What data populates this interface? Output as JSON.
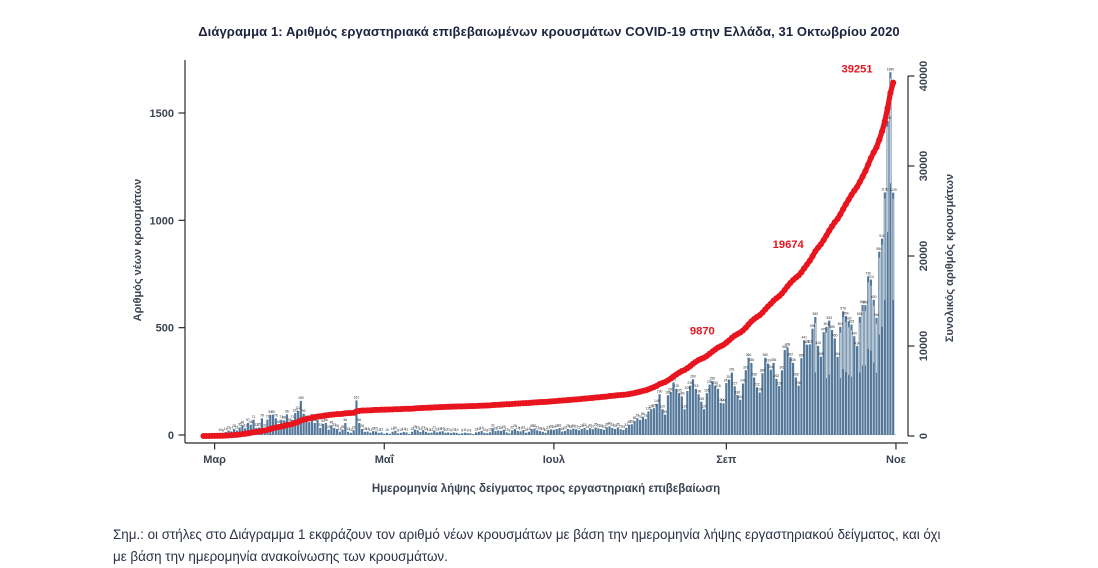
{
  "header": {
    "title": "Διάγραμμα 1: Αριθμός εργαστηριακά επιβεβαιωμένων κρουσμάτων COVID-19 στην Ελλάδα, 31 Οκτωβρίου 2020"
  },
  "footer": {
    "note_lines": [
      "Σημ.: οι στήλες στο Διάγραμμα 1 εκφράζουν τον αριθμό νέων κρουσμάτων με βάση την ημερομηνία λήψης εργαστηριακού δείγματος, και όχι",
      "με βάση την ημερομηνία ανακοίνωσης των κρουσμάτων."
    ]
  },
  "chart_data": {
    "type": "bar",
    "overlay": "line",
    "title": "Διάγραμμα 1: Αριθμός εργαστηριακά επιβεβαιωμένων κρουσμάτων COVID-19 στην Ελλάδα, 31 Οκτωβρίου 2020",
    "xlabel": "Ημερομηνία λήψης δείγματος προς εργαστηριακή επιβεβαίωση",
    "ylabel_left": "Αριθμός νέων κρουσμάτων",
    "ylabel_right": "Συνολικός αριθμός κρουσμάτων",
    "x_start_date": "2020-02-26",
    "x_end_date": "2020-10-31",
    "x_ticks": {
      "labels": [
        "Μαρ",
        "Μαΐ",
        "Ιουλ",
        "Σεπ",
        "Νοε"
      ],
      "day_index": [
        4,
        65,
        126,
        188,
        249
      ]
    },
    "y_left": {
      "ticks": [
        0,
        500,
        1000,
        1500
      ],
      "label_color": "#3c4352"
    },
    "y_right": {
      "ticks": [
        0,
        10000,
        20000,
        30000,
        40000
      ],
      "label_color": "#3c4352"
    },
    "grid": "off",
    "legend": "none",
    "colors": {
      "bars": "#54789a",
      "line": "#e8141e",
      "baseline_dotted": "#a6c3d8",
      "axis": "#2b2b2b",
      "bar_value_labels": "#24292f"
    },
    "series": [
      {
        "name": "daily-new-cases-bars",
        "type": "bar",
        "values": [
          1,
          2,
          1,
          3,
          4,
          6,
          10,
          8,
          14,
          21,
          17,
          28,
          21,
          35,
          46,
          31,
          57,
          48,
          71,
          33,
          35,
          78,
          31,
          72,
          94,
          95,
          78,
          48,
          71,
          68,
          96,
          56,
          71,
          102,
          112,
          159,
          99,
          71,
          60,
          77,
          56,
          71,
          33,
          52,
          56,
          25,
          45,
          33,
          28,
          16,
          25,
          56,
          15,
          10,
          22,
          161,
          56,
          28,
          15,
          16,
          11,
          18,
          17,
          10,
          12,
          6,
          10,
          6,
          15,
          20,
          8,
          10,
          14,
          12,
          5,
          15,
          25,
          22,
          14,
          23,
          15,
          10,
          11,
          21,
          12,
          16,
          18,
          10,
          12,
          9,
          12,
          10,
          6,
          8,
          11,
          9,
          8,
          5,
          12,
          15,
          19,
          10,
          8,
          12,
          32,
          18,
          21,
          19,
          25,
          12,
          8,
          22,
          28,
          19,
          17,
          23,
          10,
          15,
          28,
          30,
          22,
          18,
          15,
          10,
          23,
          26,
          24,
          28,
          32,
          16,
          20,
          28,
          25,
          30,
          27,
          22,
          28,
          33,
          24,
          32,
          27,
          35,
          31,
          28,
          24,
          36,
          40,
          33,
          28,
          35,
          27,
          24,
          33,
          48,
          50,
          65,
          78,
          70,
          85,
          75,
          110,
          120,
          125,
          145,
          190,
          120,
          95,
          185,
          200,
          245,
          215,
          195,
          180,
          120,
          205,
          230,
          260,
          215,
          190,
          155,
          120,
          195,
          235,
          250,
          230,
          215,
          150,
          148,
          242,
          257,
          291,
          227,
          186,
          164,
          240,
          302,
          360,
          336,
          268,
          222,
          198,
          288,
          360,
          333,
          304,
          336,
          262,
          228,
          301,
          396,
          408,
          362,
          336,
          268,
          230,
          358,
          441,
          421,
          422,
          495,
          550,
          415,
          365,
          479,
          504,
          533,
          489,
          450,
          364,
          504,
          576,
          554,
          530,
          515,
          460,
          414,
          550,
          606,
          605,
          739,
          724,
          630,
          546,
          854,
          915,
          1130,
          1463,
          1690,
          1129
        ]
      },
      {
        "name": "cumulative-cases-line",
        "type": "line",
        "derived_from": "cumulative_sum_of_bar_values",
        "end_value": 39251
      }
    ],
    "annotations": [
      {
        "text": "39251",
        "day": 235,
        "value": 40400,
        "anchor": "middle"
      },
      {
        "text": "19674",
        "day": 218,
        "value": 20900,
        "anchor": "end"
      },
      {
        "text": "9870",
        "day": 186,
        "value": 11300,
        "anchor": "end"
      }
    ]
  }
}
